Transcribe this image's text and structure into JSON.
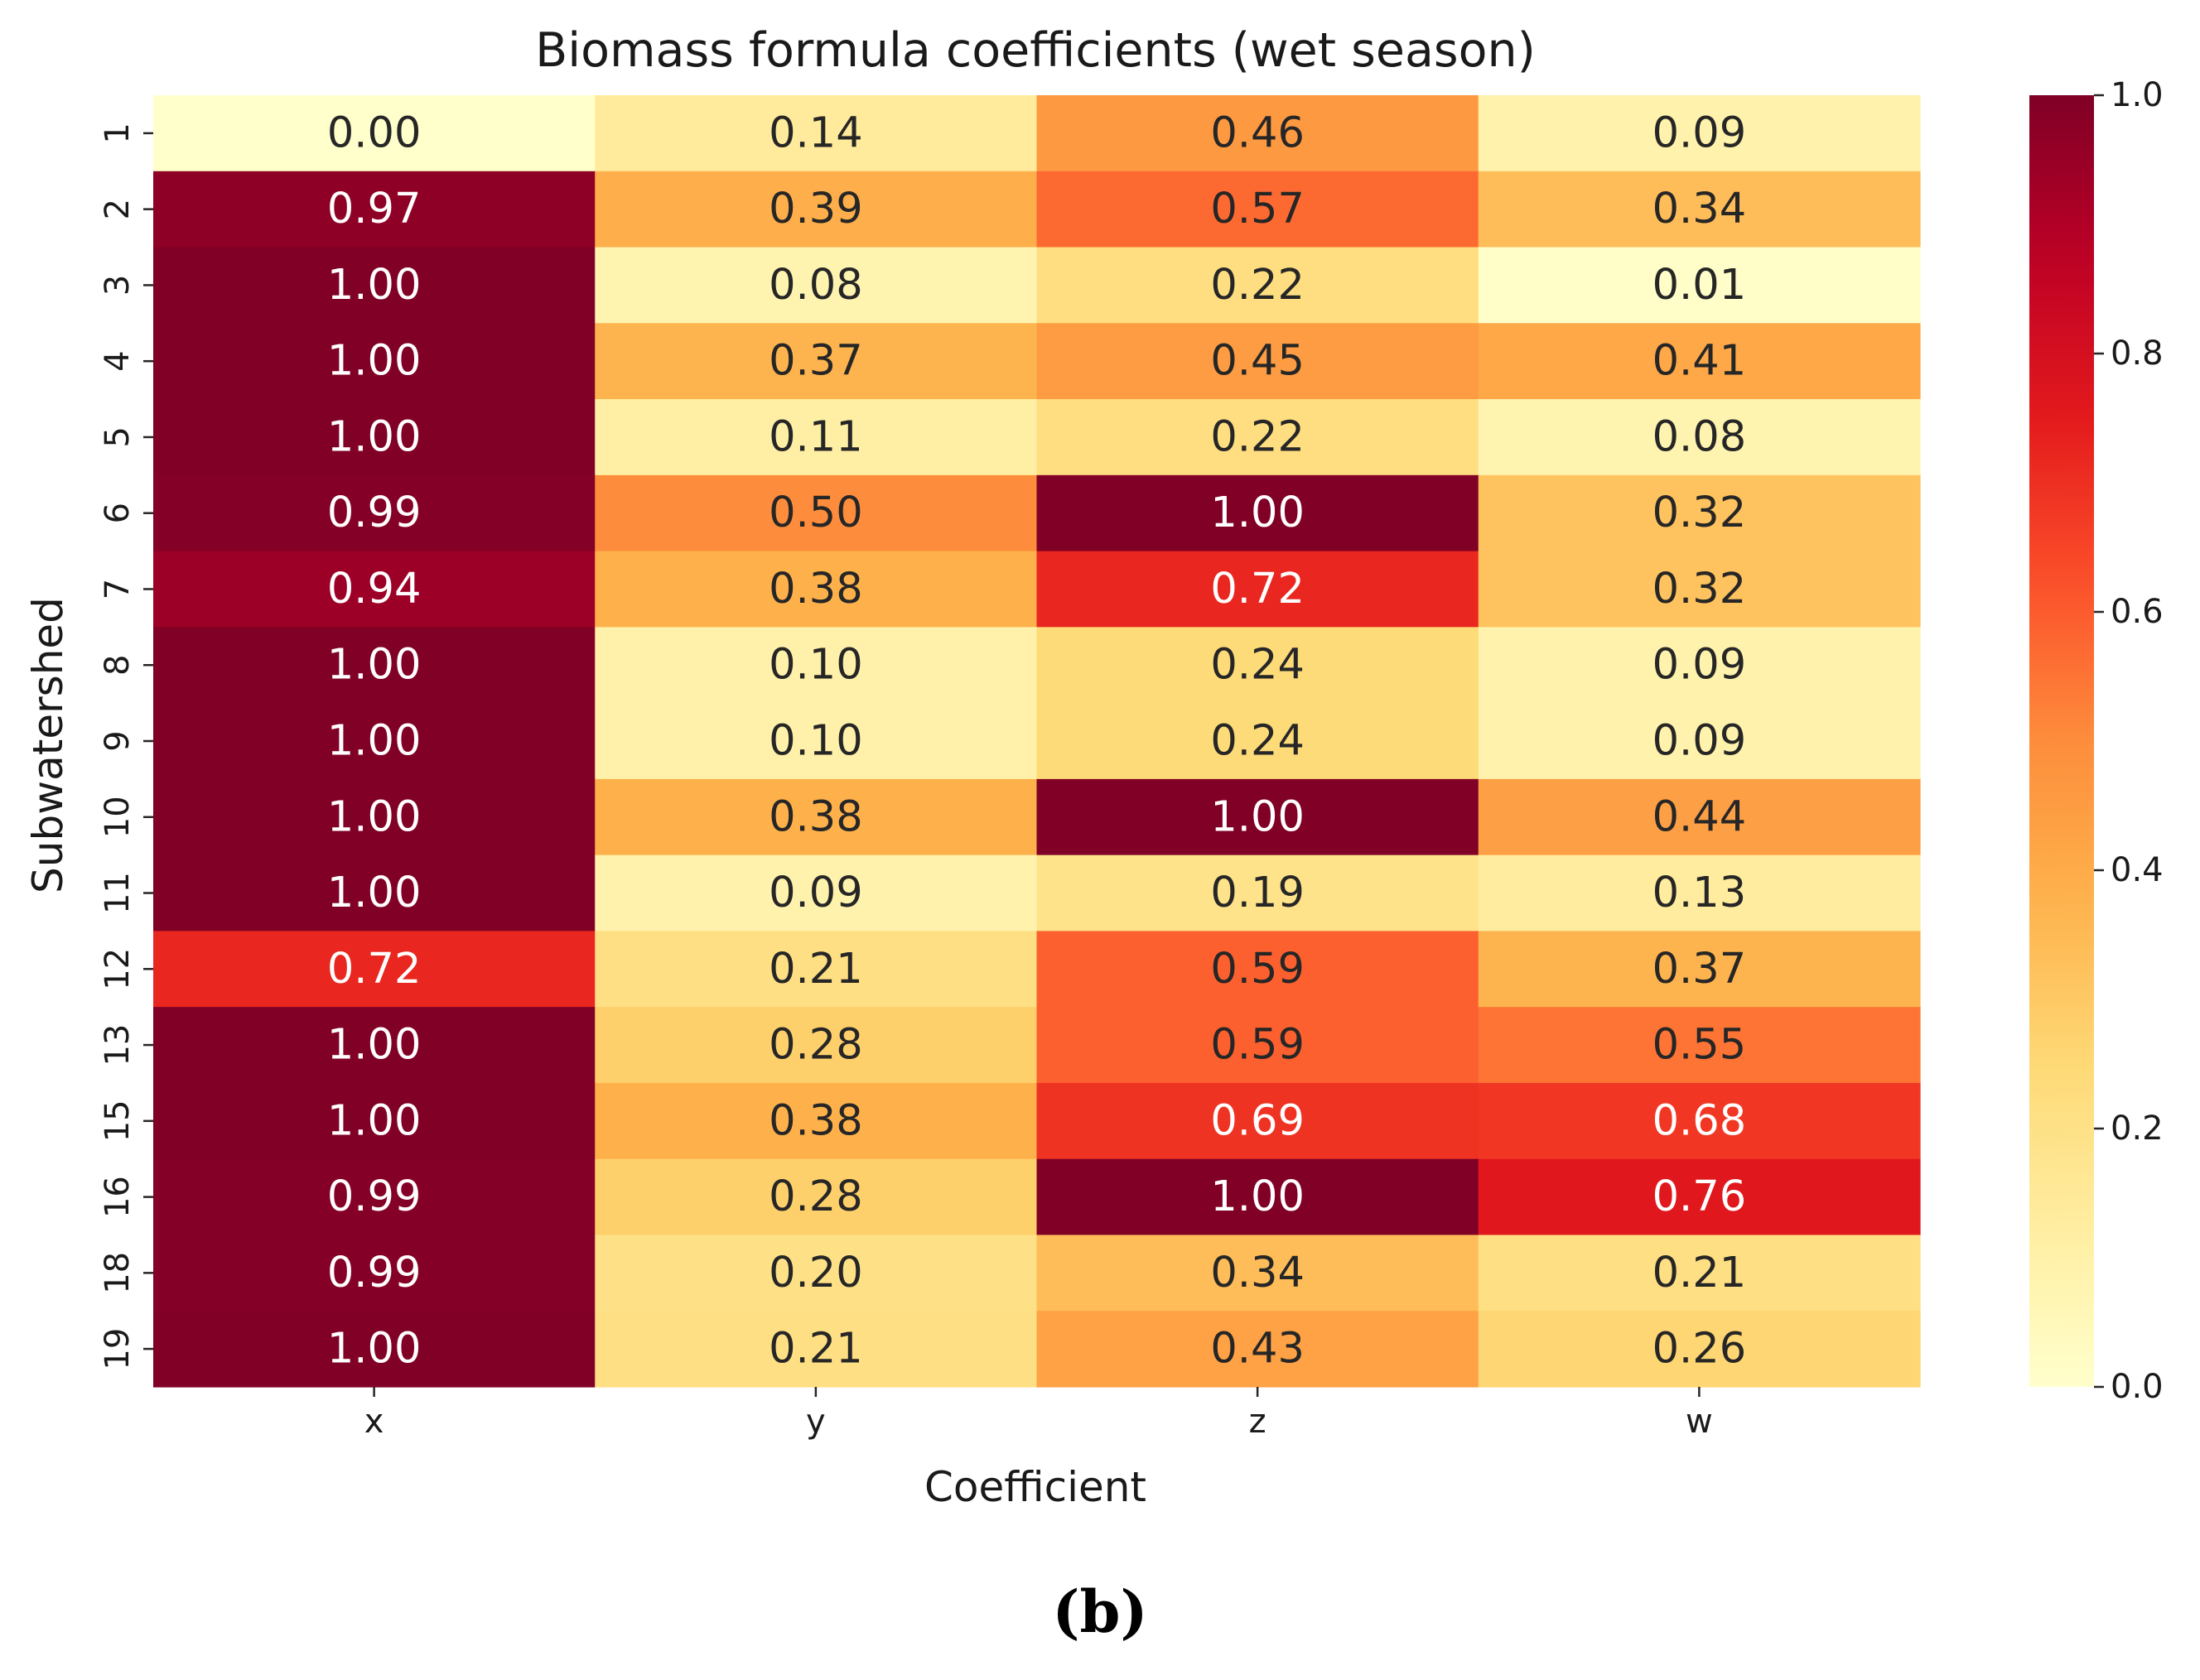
{
  "chart_data": {
    "type": "heatmap",
    "title": "Biomass formula coefficients (wet season)",
    "xlabel": "Coefficient",
    "ylabel": "Subwatershed",
    "columns": [
      "x",
      "y",
      "z",
      "w"
    ],
    "rows": [
      "1",
      "2",
      "3",
      "4",
      "5",
      "6",
      "7",
      "8",
      "9",
      "10",
      "11",
      "12",
      "13",
      "15",
      "16",
      "18",
      "19"
    ],
    "values": [
      [
        0.0,
        0.14,
        0.46,
        0.09
      ],
      [
        0.97,
        0.39,
        0.57,
        0.34
      ],
      [
        1.0,
        0.08,
        0.22,
        0.01
      ],
      [
        1.0,
        0.37,
        0.45,
        0.41
      ],
      [
        1.0,
        0.11,
        0.22,
        0.08
      ],
      [
        0.99,
        0.5,
        1.0,
        0.32
      ],
      [
        0.94,
        0.38,
        0.72,
        0.32
      ],
      [
        1.0,
        0.1,
        0.24,
        0.09
      ],
      [
        1.0,
        0.1,
        0.24,
        0.09
      ],
      [
        1.0,
        0.38,
        1.0,
        0.44
      ],
      [
        1.0,
        0.09,
        0.19,
        0.13
      ],
      [
        0.72,
        0.21,
        0.59,
        0.37
      ],
      [
        1.0,
        0.28,
        0.59,
        0.55
      ],
      [
        1.0,
        0.38,
        0.69,
        0.68
      ],
      [
        0.99,
        0.28,
        1.0,
        0.76
      ],
      [
        0.99,
        0.2,
        0.34,
        0.21
      ],
      [
        1.0,
        0.21,
        0.43,
        0.26
      ]
    ],
    "value_labels": [
      [
        "0.00",
        "0.14",
        "0.46",
        "0.09"
      ],
      [
        "0.97",
        "0.39",
        "0.57",
        "0.34"
      ],
      [
        "1.00",
        "0.08",
        "0.22",
        "0.01"
      ],
      [
        "1.00",
        "0.37",
        "0.45",
        "0.41"
      ],
      [
        "1.00",
        "0.11",
        "0.22",
        "0.08"
      ],
      [
        "0.99",
        "0.50",
        "1.00",
        "0.32"
      ],
      [
        "0.94",
        "0.38",
        "0.72",
        "0.32"
      ],
      [
        "1.00",
        "0.10",
        "0.24",
        "0.09"
      ],
      [
        "1.00",
        "0.10",
        "0.24",
        "0.09"
      ],
      [
        "1.00",
        "0.38",
        "1.00",
        "0.44"
      ],
      [
        "1.00",
        "0.09",
        "0.19",
        "0.13"
      ],
      [
        "0.72",
        "0.21",
        "0.59",
        "0.37"
      ],
      [
        "1.00",
        "0.28",
        "0.59",
        "0.55"
      ],
      [
        "1.00",
        "0.38",
        "0.69",
        "0.68"
      ],
      [
        "0.99",
        "0.28",
        "1.00",
        "0.76"
      ],
      [
        "0.99",
        "0.20",
        "0.34",
        "0.21"
      ],
      [
        "1.00",
        "0.21",
        "0.43",
        "0.26"
      ]
    ],
    "colormap": "YlOrRd",
    "vmin": 0.0,
    "vmax": 1.0,
    "colorbar_ticks": [
      0.0,
      0.2,
      0.4,
      0.6,
      0.8,
      1.0
    ],
    "colorbar_tick_labels": [
      "0.0",
      "0.2",
      "0.4",
      "0.6",
      "0.8",
      "1.0"
    ],
    "colorbar_position": "right",
    "grid": false
  },
  "panel_label": "(b)"
}
